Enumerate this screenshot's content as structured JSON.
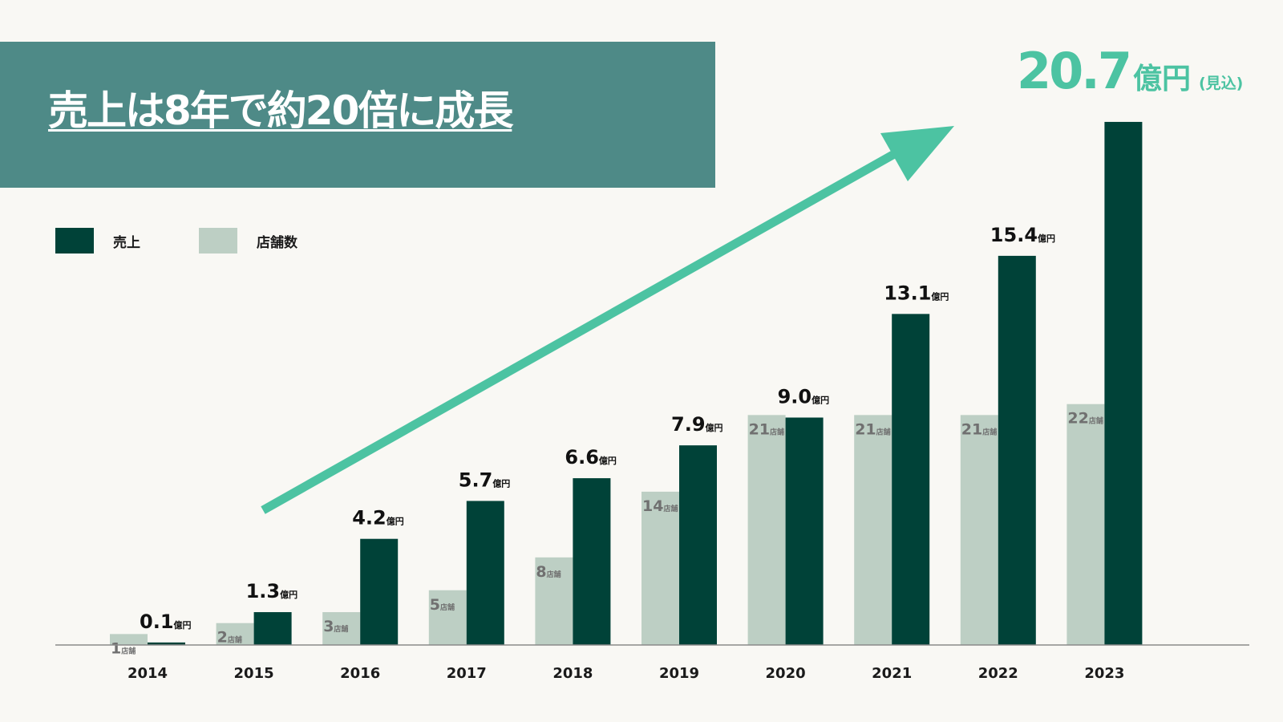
{
  "slide": {
    "title": "売上は8年で約20倍に成長",
    "headline": {
      "value": "20.7",
      "unit": "億円",
      "note": "(見込)"
    }
  },
  "legend": [
    {
      "label": "売上",
      "color": "#004238"
    },
    {
      "label": "店舗数",
      "color": "#bdcfc4"
    }
  ],
  "chart_data": {
    "type": "bar",
    "categories": [
      "2014",
      "2015",
      "2016",
      "2017",
      "2018",
      "2019",
      "2020",
      "2021",
      "2022",
      "2023"
    ],
    "series": [
      {
        "name": "店舗数",
        "values": [
          1,
          2,
          3,
          5,
          8,
          14,
          21,
          21,
          21,
          22
        ],
        "unit": "店舗",
        "color": "#bdcfc4",
        "label_color": "#707070"
      },
      {
        "name": "売上",
        "values": [
          0.1,
          1.3,
          4.2,
          5.7,
          6.6,
          7.9,
          9.0,
          13.1,
          15.4,
          20.7
        ],
        "labels": [
          "0.1",
          "1.3",
          "4.2",
          "5.7",
          "6.6",
          "7.9",
          "9.0",
          "13.1",
          "15.4",
          ""
        ],
        "unit": "億円",
        "color": "#004238",
        "label_color": "#111111"
      }
    ],
    "arrow_color": "#4cc3a2",
    "axis_color": "#8a8a8a",
    "grid": false,
    "legend_position": "top-left"
  }
}
